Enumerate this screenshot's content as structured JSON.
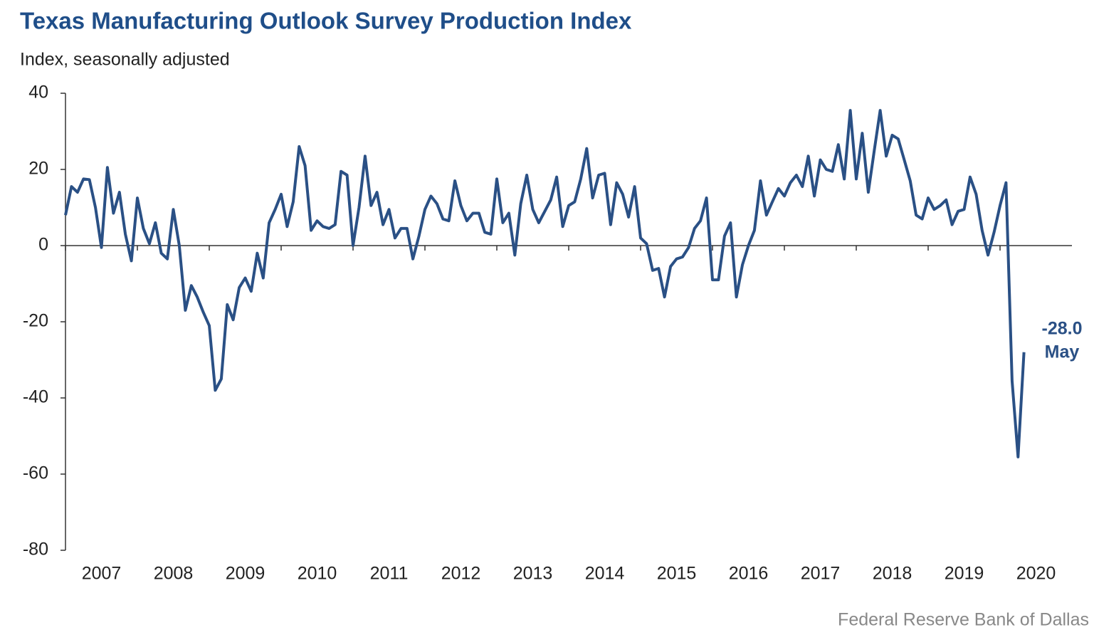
{
  "chart_data": {
    "type": "line",
    "title": "Texas Manufacturing Outlook Survey Production Index",
    "subtitle": "Index, seasonally adjusted",
    "source": "Federal Reserve Bank of Dallas",
    "annotations": [
      "-28.0",
      "May"
    ],
    "color": "#2a5085",
    "x": [
      2007,
      2007.083,
      2007.167,
      2007.25,
      2007.333,
      2007.417,
      2007.5,
      2007.583,
      2007.667,
      2007.75,
      2007.833,
      2007.917,
      2008,
      2008.083,
      2008.167,
      2008.25,
      2008.333,
      2008.417,
      2008.5,
      2008.583,
      2008.667,
      2008.75,
      2008.833,
      2008.917,
      2009,
      2009.083,
      2009.167,
      2009.25,
      2009.333,
      2009.417,
      2009.5,
      2009.583,
      2009.667,
      2009.75,
      2009.833,
      2009.917,
      2010,
      2010.083,
      2010.167,
      2010.25,
      2010.333,
      2010.417,
      2010.5,
      2010.583,
      2010.667,
      2010.75,
      2010.833,
      2010.917,
      2011,
      2011.083,
      2011.167,
      2011.25,
      2011.333,
      2011.417,
      2011.5,
      2011.583,
      2011.667,
      2011.75,
      2011.833,
      2011.917,
      2012,
      2012.083,
      2012.167,
      2012.25,
      2012.333,
      2012.417,
      2012.5,
      2012.583,
      2012.667,
      2012.75,
      2012.833,
      2012.917,
      2013,
      2013.083,
      2013.167,
      2013.25,
      2013.333,
      2013.417,
      2013.5,
      2013.583,
      2013.667,
      2013.75,
      2013.833,
      2013.917,
      2014,
      2014.083,
      2014.167,
      2014.25,
      2014.333,
      2014.417,
      2014.5,
      2014.583,
      2014.667,
      2014.75,
      2014.833,
      2014.917,
      2015,
      2015.083,
      2015.167,
      2015.25,
      2015.333,
      2015.417,
      2015.5,
      2015.583,
      2015.667,
      2015.75,
      2015.833,
      2015.917,
      2016,
      2016.083,
      2016.167,
      2016.25,
      2016.333,
      2016.417,
      2016.5,
      2016.583,
      2016.667,
      2016.75,
      2016.833,
      2016.917,
      2017,
      2017.083,
      2017.167,
      2017.25,
      2017.333,
      2017.417,
      2017.5,
      2017.583,
      2017.667,
      2017.75,
      2017.833,
      2017.917,
      2018,
      2018.083,
      2018.167,
      2018.25,
      2018.333,
      2018.417,
      2018.5,
      2018.583,
      2018.667,
      2018.75,
      2018.833,
      2018.917,
      2019,
      2019.083,
      2019.167,
      2019.25,
      2019.333,
      2019.417,
      2019.5,
      2019.583,
      2019.667,
      2019.75,
      2019.833,
      2019.917,
      2020,
      2020.083,
      2020.167,
      2020.25,
      2020.333
    ],
    "values": [
      8,
      15.5,
      14,
      17.5,
      17.3,
      10,
      -0.5,
      20.5,
      8.5,
      14,
      3,
      -4,
      12.5,
      4.5,
      0.5,
      6,
      -2,
      -3.5,
      9.5,
      0,
      -17,
      -10.5,
      -13.5,
      -17.5,
      -21,
      -38,
      -35,
      -15.5,
      -19.5,
      -11,
      -8.5,
      -12,
      -2,
      -8.5,
      6,
      9.5,
      13.5,
      5,
      11.5,
      26,
      21,
      4,
      6.5,
      5,
      4.5,
      5.5,
      19.5,
      18.5,
      0,
      10,
      23.5,
      10.5,
      14,
      5.5,
      9.5,
      2,
      4.5,
      4.5,
      -3.5,
      2.5,
      9.5,
      13,
      11,
      7,
      6.5,
      17,
      10.5,
      6.5,
      8.5,
      8.5,
      3.5,
      3,
      17.5,
      6,
      8.5,
      -2.5,
      11,
      18.5,
      9.5,
      6,
      9,
      12,
      18,
      5,
      10.5,
      11.5,
      17.5,
      25.5,
      12.5,
      18.5,
      19,
      5.5,
      16.5,
      13.5,
      7.5,
      15.5,
      2,
      0.5,
      -6.5,
      -6,
      -13.5,
      -5.5,
      -3.5,
      -3,
      -0.5,
      4.5,
      6.5,
      12.5,
      -9,
      -9,
      2.5,
      6,
      -13.5,
      -5,
      0,
      4,
      17,
      8,
      11.5,
      15,
      13,
      16.5,
      18.5,
      15.5,
      23.5,
      13,
      22.5,
      20,
      19.5,
      26.5,
      17.5,
      35.5,
      17.5,
      29.5,
      14,
      25,
      35.5,
      23.5,
      29,
      28,
      22.5,
      17,
      8,
      7,
      12.5,
      9.5,
      10.5,
      12,
      5.5,
      9,
      9.5,
      18,
      13.5,
      4,
      -2.5,
      3.5,
      10.5,
      16.5,
      -35.5,
      -55.5,
      -28
    ],
    "xlim": [
      2007,
      2021
    ],
    "xticks": [
      2007,
      2008,
      2009,
      2010,
      2011,
      2012,
      2013,
      2014,
      2015,
      2016,
      2017,
      2018,
      2019,
      2020
    ],
    "ylim": [
      -80,
      40
    ],
    "yticks": [
      40,
      20,
      0,
      -20,
      -40,
      -60,
      -80
    ]
  }
}
